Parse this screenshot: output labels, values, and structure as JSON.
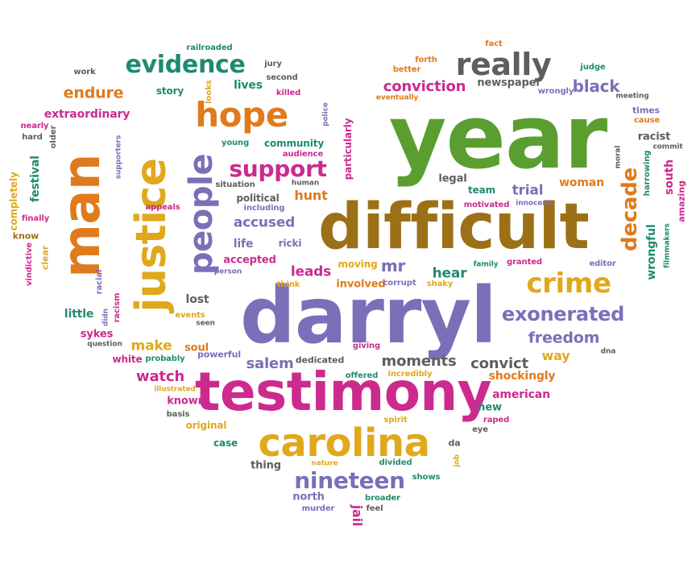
{
  "colors": {
    "green": "#5a9e2f",
    "orange": "#e07a1c",
    "gold": "#e0a81c",
    "brown": "#9c7016",
    "purple": "#7a6fb8",
    "magenta": "#cc2a8e",
    "teal": "#1f8a70",
    "gray": "#5e5e5e"
  },
  "words": [
    {
      "text": "year",
      "color": "green"
    },
    {
      "text": "darryl",
      "color": "purple"
    },
    {
      "text": "difficult",
      "color": "brown"
    },
    {
      "text": "testimony",
      "color": "magenta"
    },
    {
      "text": "man",
      "color": "orange"
    },
    {
      "text": "justice",
      "color": "gold"
    },
    {
      "text": "carolina",
      "color": "gold"
    },
    {
      "text": "people",
      "color": "purple"
    },
    {
      "text": "hope",
      "color": "orange"
    },
    {
      "text": "really",
      "color": "gray"
    },
    {
      "text": "evidence",
      "color": "teal"
    },
    {
      "text": "crime",
      "color": "gold"
    },
    {
      "text": "nineteen",
      "color": "purple"
    },
    {
      "text": "support",
      "color": "magenta"
    },
    {
      "text": "decade",
      "color": "orange"
    },
    {
      "text": "exonerated",
      "color": "purple"
    },
    {
      "text": "conviction",
      "color": "magenta"
    },
    {
      "text": "black",
      "color": "purple"
    },
    {
      "text": "endure",
      "color": "orange"
    },
    {
      "text": "freedom",
      "color": "purple"
    },
    {
      "text": "convict",
      "color": "gray"
    },
    {
      "text": "moments",
      "color": "gray"
    },
    {
      "text": "salem",
      "color": "purple"
    },
    {
      "text": "watch",
      "color": "magenta"
    },
    {
      "text": "make",
      "color": "gold"
    },
    {
      "text": "accused",
      "color": "purple"
    },
    {
      "text": "hunt",
      "color": "orange"
    },
    {
      "text": "leads",
      "color": "magenta"
    },
    {
      "text": "mr",
      "color": "purple"
    },
    {
      "text": "hear",
      "color": "teal"
    },
    {
      "text": "trial",
      "color": "purple"
    },
    {
      "text": "way",
      "color": "gold"
    },
    {
      "text": "extraordinary",
      "color": "magenta"
    },
    {
      "text": "festival",
      "color": "teal"
    },
    {
      "text": "lives",
      "color": "teal"
    },
    {
      "text": "story",
      "color": "teal"
    },
    {
      "text": "woman",
      "color": "orange"
    },
    {
      "text": "wrongful",
      "color": "teal"
    },
    {
      "text": "south",
      "color": "magenta"
    },
    {
      "text": "community",
      "color": "teal"
    },
    {
      "text": "involved",
      "color": "orange"
    },
    {
      "text": "accepted",
      "color": "magenta"
    },
    {
      "text": "life",
      "color": "purple"
    },
    {
      "text": "american",
      "color": "magenta"
    },
    {
      "text": "shockingly",
      "color": "orange"
    },
    {
      "text": "legal",
      "color": "gray"
    },
    {
      "text": "team",
      "color": "teal"
    },
    {
      "text": "lost",
      "color": "gray"
    },
    {
      "text": "soul",
      "color": "orange"
    },
    {
      "text": "political",
      "color": "gray"
    },
    {
      "text": "particularly",
      "color": "magenta"
    },
    {
      "text": "newspaper",
      "color": "gray"
    },
    {
      "text": "racist",
      "color": "gray"
    },
    {
      "text": "original",
      "color": "gold"
    },
    {
      "text": "case",
      "color": "teal"
    },
    {
      "text": "little",
      "color": "teal"
    },
    {
      "text": "sykes",
      "color": "magenta"
    },
    {
      "text": "white",
      "color": "magenta"
    },
    {
      "text": "known",
      "color": "magenta"
    },
    {
      "text": "north",
      "color": "purple"
    },
    {
      "text": "thing",
      "color": "gray"
    },
    {
      "text": "new",
      "color": "teal"
    },
    {
      "text": "dedicated",
      "color": "gray"
    },
    {
      "text": "jail",
      "color": "magenta"
    },
    {
      "text": "moving",
      "color": "gold"
    },
    {
      "text": "ricki",
      "color": "purple"
    },
    {
      "text": "completely",
      "color": "gold"
    },
    {
      "text": "know",
      "color": "brown"
    },
    {
      "text": "amazing",
      "color": "magenta"
    },
    {
      "text": "powerful",
      "color": "purple"
    },
    {
      "text": "probably",
      "color": "teal"
    },
    {
      "text": "eye",
      "color": "gray"
    },
    {
      "text": "da",
      "color": "gray"
    },
    {
      "text": "broader",
      "color": "teal"
    },
    {
      "text": "murder",
      "color": "purple"
    },
    {
      "text": "feel",
      "color": "gray"
    },
    {
      "text": "shows",
      "color": "teal"
    },
    {
      "text": "divided",
      "color": "teal"
    },
    {
      "text": "nature",
      "color": "gold"
    },
    {
      "text": "spirit",
      "color": "gold"
    },
    {
      "text": "raped",
      "color": "magenta"
    },
    {
      "text": "offered",
      "color": "teal"
    },
    {
      "text": "incredibly",
      "color": "gold"
    },
    {
      "text": "giving",
      "color": "magenta"
    },
    {
      "text": "corrupt",
      "color": "purple"
    },
    {
      "text": "shaky",
      "color": "gold"
    },
    {
      "text": "family",
      "color": "teal"
    },
    {
      "text": "granted",
      "color": "magenta"
    },
    {
      "text": "editor",
      "color": "purple"
    },
    {
      "text": "motivated",
      "color": "magenta"
    },
    {
      "text": "innocent",
      "color": "purple"
    },
    {
      "text": "appeals",
      "color": "magenta"
    },
    {
      "text": "situation",
      "color": "gray"
    },
    {
      "text": "including",
      "color": "purple"
    },
    {
      "text": "young",
      "color": "teal"
    },
    {
      "text": "audience",
      "color": "magenta"
    },
    {
      "text": "human",
      "color": "gray"
    },
    {
      "text": "killed",
      "color": "magenta"
    },
    {
      "text": "second",
      "color": "gray"
    },
    {
      "text": "jury",
      "color": "gray"
    },
    {
      "text": "railroaded",
      "color": "teal"
    },
    {
      "text": "work",
      "color": "gray"
    },
    {
      "text": "hard",
      "color": "gray"
    },
    {
      "text": "nearly",
      "color": "magenta"
    },
    {
      "text": "older",
      "color": "gray"
    },
    {
      "text": "looks",
      "color": "gold"
    },
    {
      "text": "police",
      "color": "purple"
    },
    {
      "text": "fact",
      "color": "orange"
    },
    {
      "text": "forth",
      "color": "orange"
    },
    {
      "text": "better",
      "color": "orange"
    },
    {
      "text": "eventually",
      "color": "orange"
    },
    {
      "text": "wrongly",
      "color": "purple"
    },
    {
      "text": "judge",
      "color": "teal"
    },
    {
      "text": "meeting",
      "color": "gray"
    },
    {
      "text": "times",
      "color": "purple"
    },
    {
      "text": "cause",
      "color": "orange"
    },
    {
      "text": "commit",
      "color": "gray"
    },
    {
      "text": "moral",
      "color": "gray"
    },
    {
      "text": "harrowing",
      "color": "teal"
    },
    {
      "text": "filmmakers",
      "color": "teal"
    },
    {
      "text": "dna",
      "color": "gray"
    },
    {
      "text": "clear",
      "color": "gold"
    },
    {
      "text": "vindictive",
      "color": "magenta"
    },
    {
      "text": "finally",
      "color": "magenta"
    },
    {
      "text": "racial",
      "color": "purple"
    },
    {
      "text": "racism",
      "color": "magenta"
    },
    {
      "text": "didn",
      "color": "purple"
    },
    {
      "text": "question",
      "color": "gray"
    },
    {
      "text": "events",
      "color": "gold"
    },
    {
      "text": "seen",
      "color": "gray"
    },
    {
      "text": "person",
      "color": "purple"
    },
    {
      "text": "think",
      "color": "gold"
    },
    {
      "text": "supporters",
      "color": "purple"
    },
    {
      "text": "illustrated",
      "color": "gold"
    },
    {
      "text": "basis",
      "color": "gray"
    },
    {
      "text": "job",
      "color": "gold"
    }
  ]
}
